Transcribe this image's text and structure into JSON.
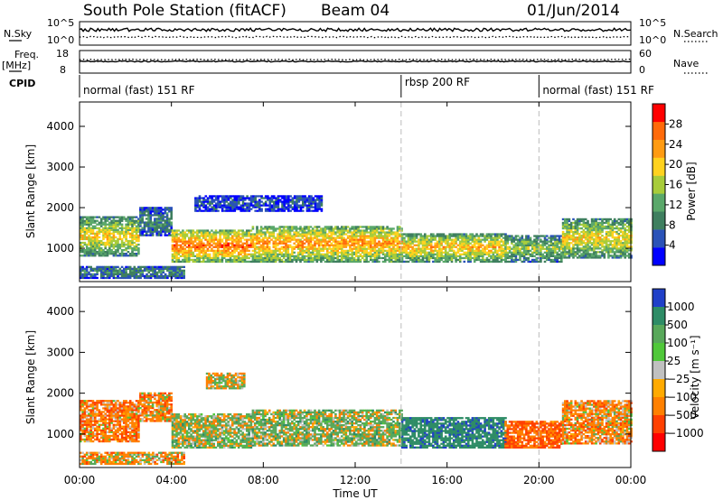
{
  "header": {
    "station": "South Pole Station (fitACF)",
    "beam": "Beam 04",
    "date": "01/Jun/2014"
  },
  "top_panels": {
    "nsky_label": "N.Sky",
    "nsky_ticks": [
      "10^5",
      "10^0"
    ],
    "nsearch_label": "N.Search",
    "nsearch_ticks": [
      "10^5",
      "10^0"
    ],
    "freq_label": "Freq.",
    "freq_unit": "[MHz]",
    "freq_ticks": [
      "18",
      "8"
    ],
    "nave_label": "Nave",
    "nave_ticks": [
      "60",
      "0"
    ],
    "cpid_label": "CPID",
    "modes": [
      {
        "label": "normal (fast) 151 RF",
        "start_hour": 0,
        "end_hour": 14
      },
      {
        "label": "rbsp 200 RF",
        "start_hour": 14,
        "end_hour": 20
      },
      {
        "label": "normal (fast) 151 RF",
        "start_hour": 20,
        "end_hour": 24
      }
    ]
  },
  "chart_data": [
    {
      "type": "heatmap",
      "name": "power",
      "xlabel": "Time UT",
      "ylabel": "Slant Range [km]",
      "xlim": [
        0,
        24
      ],
      "ylim": [
        180,
        4600
      ],
      "x_ticks": [
        "00:00",
        "04:00",
        "08:00",
        "12:00",
        "16:00",
        "20:00",
        "00:00"
      ],
      "x_tick_hours": [
        0,
        4,
        8,
        12,
        16,
        20,
        24
      ],
      "y_ticks": [
        1000,
        2000,
        3000,
        4000
      ],
      "colorbar": {
        "label": "Power [dB]",
        "range": [
          0,
          32
        ],
        "ticks": [
          4,
          8,
          12,
          16,
          20,
          24,
          28
        ],
        "colors": [
          "#0000ff",
          "#2a52b8",
          "#3f7f5f",
          "#5aa86a",
          "#a8cc3a",
          "#ffd21e",
          "#ff9b12",
          "#ff6a0a",
          "#ff0000"
        ]
      },
      "echo_bands": [
        {
          "t0": 0.0,
          "t1": 2.6,
          "r0": 800,
          "r1": 1750,
          "level": 20
        },
        {
          "t0": 2.6,
          "t1": 4.0,
          "r0": 1300,
          "r1": 2000,
          "level": 10
        },
        {
          "t0": 4.0,
          "t1": 7.5,
          "r0": 650,
          "r1": 1450,
          "level": 27
        },
        {
          "t0": 7.5,
          "t1": 14.0,
          "r0": 650,
          "r1": 1550,
          "level": 24
        },
        {
          "t0": 14.0,
          "t1": 18.5,
          "r0": 650,
          "r1": 1350,
          "level": 22
        },
        {
          "t0": 18.5,
          "t1": 21.0,
          "r0": 650,
          "r1": 1300,
          "level": 16
        },
        {
          "t0": 21.0,
          "t1": 24.0,
          "r0": 750,
          "r1": 1700,
          "level": 20
        },
        {
          "t0": 0.0,
          "t1": 4.5,
          "r0": 250,
          "r1": 550,
          "level": 10
        },
        {
          "t0": 5.0,
          "t1": 10.5,
          "r0": 1900,
          "r1": 2300,
          "level": 6
        }
      ]
    },
    {
      "type": "heatmap",
      "name": "velocity",
      "xlabel": "Time UT",
      "ylabel": "Slant Range [km]",
      "xlim": [
        0,
        24
      ],
      "ylim": [
        180,
        4600
      ],
      "x_ticks": [
        "00:00",
        "04:00",
        "08:00",
        "12:00",
        "16:00",
        "20:00",
        "00:00"
      ],
      "x_tick_hours": [
        0,
        4,
        8,
        12,
        16,
        20,
        24
      ],
      "y_ticks": [
        1000,
        2000,
        3000,
        4000
      ],
      "colorbar": {
        "label": "Velocity [m s⁻¹]",
        "ticks": [
          "1000",
          "500",
          "100",
          "25",
          "−25",
          "−100",
          "−500",
          "−1000"
        ],
        "colors": [
          "#2040c8",
          "#2e8c66",
          "#58a85a",
          "#50c83a",
          "#c0c0c0",
          "#ffaa00",
          "#ff8000",
          "#ff4000",
          "#ff0000"
        ]
      },
      "echo_bands": [
        {
          "t0": 0.0,
          "t1": 2.6,
          "r0": 800,
          "r1": 1800,
          "velocity": -200
        },
        {
          "t0": 2.6,
          "t1": 4.0,
          "r0": 1300,
          "r1": 2000,
          "velocity": -150
        },
        {
          "t0": 4.0,
          "t1": 7.5,
          "r0": 650,
          "r1": 1500,
          "velocity": 80
        },
        {
          "t0": 7.5,
          "t1": 14.0,
          "r0": 700,
          "r1": 1600,
          "velocity": 100
        },
        {
          "t0": 14.0,
          "t1": 18.5,
          "r0": 650,
          "r1": 1400,
          "velocity": 600
        },
        {
          "t0": 18.5,
          "t1": 21.0,
          "r0": 650,
          "r1": 1300,
          "velocity": -300
        },
        {
          "t0": 21.0,
          "t1": 24.0,
          "r0": 750,
          "r1": 1800,
          "velocity": -150
        },
        {
          "t0": 0.0,
          "t1": 4.5,
          "r0": 250,
          "r1": 550,
          "velocity": -100
        },
        {
          "t0": 5.5,
          "t1": 7.2,
          "r0": 2100,
          "r1": 2500,
          "velocity": 0
        }
      ]
    }
  ]
}
